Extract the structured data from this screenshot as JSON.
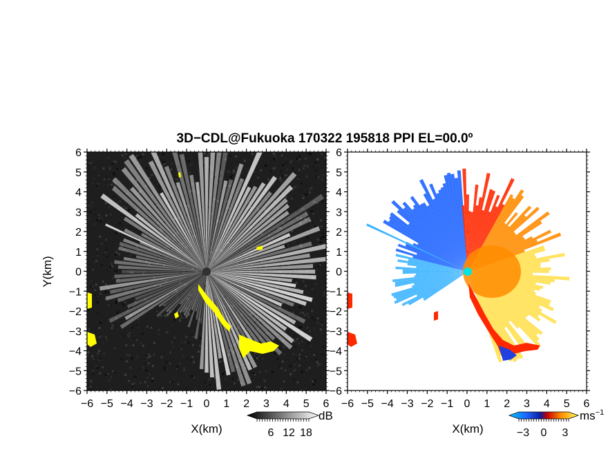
{
  "title": "3D−CDL@Fukuoka 170322 195818 PPI EL=00.0º",
  "colors": {
    "snr_background": "#1e1e1e",
    "rays": "#ffffff",
    "flag_yellow": "#ffff00",
    "velocity_approaching": "#1e64ff",
    "velocity_receding": "#ff8c00",
    "velocity_receding_strong": "#ff2800",
    "velocity_weak_receding": "#ffe050",
    "radar_site": "#00e5e5",
    "approach_fold": "#2040e0"
  },
  "chart_data": [
    {
      "type": "heatmap",
      "panel": "snr",
      "title": "",
      "xlabel": "X(km)",
      "ylabel": "Y(km)",
      "xlim": [
        -6,
        6
      ],
      "ylim": [
        -6,
        6
      ],
      "xticks": [
        "−6",
        "−5",
        "−4",
        "−3",
        "−2",
        "−1",
        "0",
        "1",
        "2",
        "3",
        "4",
        "5",
        "6"
      ],
      "yticks": [
        "6",
        "5",
        "4",
        "3",
        "2",
        "1",
        "0",
        "−1",
        "−2",
        "−3",
        "−4",
        "−5",
        "−6"
      ],
      "colorbar": {
        "unit": "dB",
        "tick_labels": [
          "6",
          "12",
          "18"
        ]
      }
    },
    {
      "type": "heatmap",
      "panel": "radial_velocity",
      "title": "",
      "xlabel": "X(km)",
      "ylabel": "",
      "xlim": [
        -6,
        6
      ],
      "ylim": [
        -6,
        6
      ],
      "xticks": [
        "−6",
        "−5",
        "−4",
        "−3",
        "−2",
        "−1",
        "0",
        "1",
        "2",
        "3",
        "4",
        "5",
        "6"
      ],
      "yticks": [
        "6",
        "5",
        "4",
        "3",
        "2",
        "1",
        "0",
        "−1",
        "−2",
        "−3",
        "−4",
        "−5",
        "−6"
      ],
      "colorbar": {
        "unit": "ms",
        "unit_exponent": "−1",
        "tick_labels": [
          "−3",
          "0",
          "3"
        ]
      }
    }
  ]
}
